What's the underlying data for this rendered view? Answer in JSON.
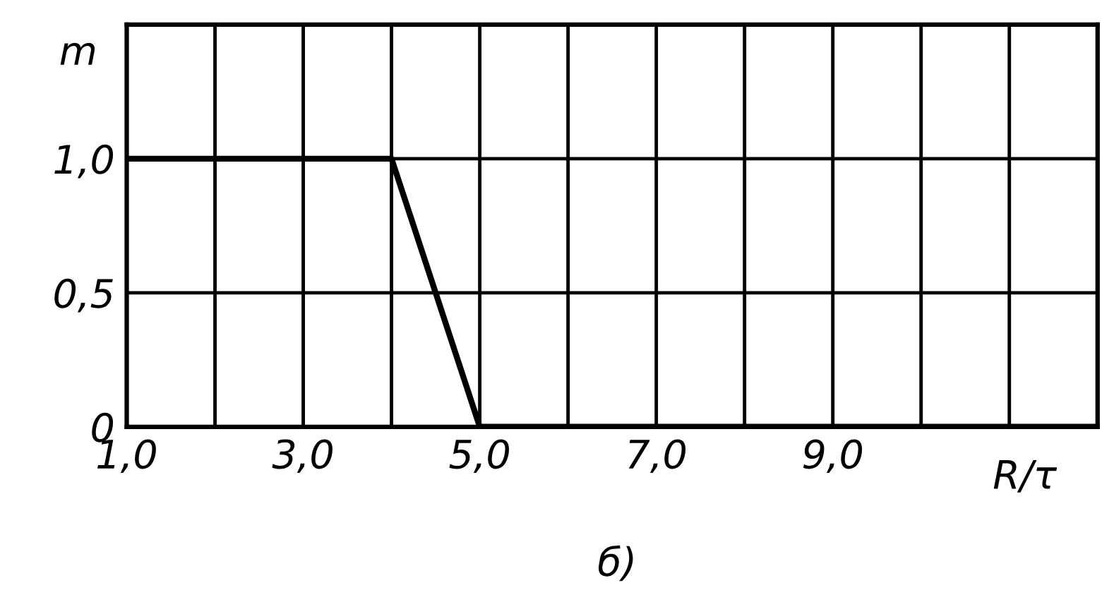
{
  "chart_data": {
    "type": "line",
    "xlabel": "R/τ",
    "ylabel": "m",
    "annotations": [
      "б)"
    ],
    "x": [
      1,
      4,
      4.25,
      4.5,
      5,
      12
    ],
    "series": [
      {
        "color": "#000000",
        "values": [
          1.0,
          1.0,
          0.75,
          0.5,
          0,
          0
        ]
      }
    ],
    "xlim": [
      1,
      12
    ],
    "ylim": [
      0,
      1.5
    ],
    "xticks": [
      {
        "value": 1,
        "label": "1,0"
      },
      {
        "value": 2,
        "label": null
      },
      {
        "value": 3,
        "label": "3,0"
      },
      {
        "value": 4,
        "label": null
      },
      {
        "value": 5,
        "label": "5,0"
      },
      {
        "value": 6,
        "label": null
      },
      {
        "value": 7,
        "label": "7,0"
      },
      {
        "value": 8,
        "label": null
      },
      {
        "value": 9,
        "label": "9,0"
      },
      {
        "value": 10,
        "label": null
      },
      {
        "value": 11,
        "label": null
      }
    ],
    "yticks": [
      {
        "value": 0,
        "label": "0"
      },
      {
        "value": 0.5,
        "label": "0,5"
      },
      {
        "value": 1.0,
        "label": "1,0"
      }
    ],
    "grid": true,
    "marker": "none",
    "line_style": "solid"
  }
}
